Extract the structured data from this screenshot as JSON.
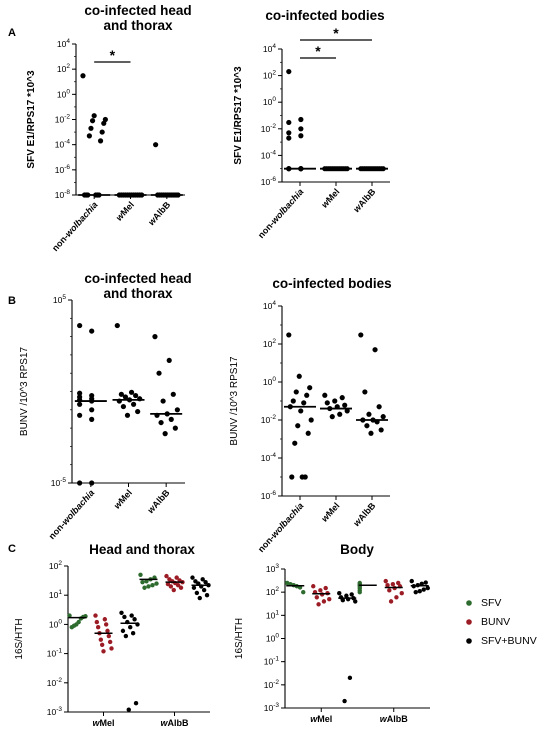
{
  "panels": [
    {
      "label": "A"
    },
    {
      "label": "B"
    },
    {
      "label": "C"
    }
  ],
  "colors": {
    "SFV": "#2e6b2e",
    "BUNV": "#9c1c26",
    "SFV+BUNV": "#000000"
  },
  "legend": {
    "items": [
      {
        "name": "SFV",
        "color": "#2e6b2e"
      },
      {
        "name": "BUNV",
        "color": "#9c1c26"
      },
      {
        "name": "SFV+BUNV",
        "color": "#000000"
      }
    ]
  },
  "chart_data": [
    {
      "type": "scatter",
      "panel": "A",
      "title_lines": [
        "co-infected head",
        "and thorax"
      ],
      "ylabel": "SFV E1/RPS17 *10^3",
      "yscale": "log",
      "ylim": [
        1e-08,
        10000.0
      ],
      "yticks": [
        {
          "v": 10000.0,
          "label": "10^4"
        },
        {
          "v": 100.0,
          "label": "10^2"
        },
        {
          "v": 1,
          "label": "10^0"
        },
        {
          "v": 0.01,
          "label": "10^-2"
        },
        {
          "v": 0.0001,
          "label": "10^-4"
        },
        {
          "v": 1e-06,
          "label": "10^-6"
        },
        {
          "v": 1e-08,
          "label": "10^-8"
        }
      ],
      "categories": [
        "non-wolbachia",
        "wMel",
        "wAlbB"
      ],
      "series": [
        {
          "values": [
            [
              30,
              0.02,
              0.01,
              0.008,
              0.005,
              0.002,
              0.001,
              0.0005,
              0.0002,
              1e-08,
              1e-08,
              1e-08,
              1e-08,
              1e-08,
              1e-08
            ],
            [
              1e-08,
              1e-08,
              1e-08,
              1e-08,
              1e-08,
              1e-08,
              1e-08,
              1e-08,
              1e-08,
              1e-08,
              1e-08,
              1e-08
            ],
            [
              0.0001,
              1e-08,
              1e-08,
              1e-08,
              1e-08,
              1e-08,
              1e-08,
              1e-08,
              1e-08,
              1e-08,
              1e-08,
              1e-08
            ]
          ]
        }
      ],
      "medians": [
        1e-08,
        1e-08,
        1e-08
      ],
      "significance": [
        {
          "from": 0,
          "to": 1,
          "label": "*"
        }
      ]
    },
    {
      "type": "scatter",
      "panel": "A",
      "title_lines": [
        "co-infected bodies"
      ],
      "ylabel": "SFV E1/RPS17 *10^3",
      "yscale": "log",
      "ylim": [
        1e-06,
        10000.0
      ],
      "yticks": [
        {
          "v": 10000.0,
          "label": "10^4"
        },
        {
          "v": 100.0,
          "label": "10^2"
        },
        {
          "v": 1,
          "label": "10^0"
        },
        {
          "v": 0.01,
          "label": "10^-2"
        },
        {
          "v": 0.0001,
          "label": "10^-4"
        },
        {
          "v": 1e-06,
          "label": "10^-6"
        }
      ],
      "categories": [
        "non-wolbachia",
        "wMel",
        "wAlbB"
      ],
      "series": [
        {
          "values": [
            [
              200,
              0.05,
              0.03,
              0.01,
              0.005,
              0.003,
              0.002,
              1e-05,
              1e-05,
              1e-05,
              1e-05,
              1e-05,
              1e-05,
              1e-05
            ],
            [
              1e-05,
              1e-05,
              1e-05,
              1e-05,
              1e-05,
              1e-05,
              1e-05,
              1e-05,
              1e-05,
              1e-05,
              1e-05,
              1e-05
            ],
            [
              1e-05,
              1e-05,
              1e-05,
              1e-05,
              1e-05,
              1e-05,
              1e-05,
              1e-05,
              1e-05,
              1e-05,
              1e-05,
              1e-05
            ]
          ]
        }
      ],
      "medians": [
        1e-05,
        1e-05,
        1e-05
      ],
      "significance": [
        {
          "from": 0,
          "to": 1,
          "label": "*"
        },
        {
          "from": 0,
          "to": 2,
          "label": "*"
        }
      ]
    },
    {
      "type": "scatter",
      "panel": "B",
      "title_lines": [
        "co-infected head",
        "and thorax"
      ],
      "ylabel": "BUNV /10^3 RPS17",
      "yscale": "log",
      "ylim": [
        1e-05,
        100000.0
      ],
      "yticks": [
        {
          "v": 100000.0,
          "label": "10^5"
        },
        {
          "v": 1e-05,
          "label": "10^-5"
        }
      ],
      "categories": [
        "non-wolbachia",
        "wMel",
        "wAlbB"
      ],
      "series": [
        {
          "values": [
            [
              4000,
              2000,
              0.8,
              0.6,
              0.5,
              0.4,
              0.35,
              0.3,
              0.2,
              0.1,
              0.05,
              0.03,
              1e-05,
              1e-05
            ],
            [
              4000,
              0.9,
              0.7,
              0.6,
              0.5,
              0.4,
              0.35,
              0.3,
              0.2,
              0.15,
              0.08,
              0.05
            ],
            [
              1000,
              50,
              10,
              0.7,
              0.3,
              0.1,
              0.06,
              0.05,
              0.03,
              0.02,
              0.01,
              0.005
            ]
          ]
        }
      ],
      "medians": [
        0.3,
        0.35,
        0.06
      ],
      "significance": []
    },
    {
      "type": "scatter",
      "panel": "B",
      "title_lines": [
        "co-infected bodies"
      ],
      "ylabel": "BUNV /10^3 RPS17",
      "yscale": "log",
      "ylim": [
        1e-06,
        10000.0
      ],
      "yticks": [
        {
          "v": 10000.0,
          "label": "10^4"
        },
        {
          "v": 100.0,
          "label": "10^2"
        },
        {
          "v": 1,
          "label": "10^0"
        },
        {
          "v": 0.01,
          "label": "10^-2"
        },
        {
          "v": 0.0001,
          "label": "10^-4"
        },
        {
          "v": 1e-06,
          "label": "10^-6"
        }
      ],
      "categories": [
        "non-wolbachia",
        "wMel",
        "wAlbB"
      ],
      "series": [
        {
          "values": [
            [
              300,
              2,
              0.5,
              0.3,
              0.2,
              0.1,
              0.08,
              0.05,
              0.03,
              0.01,
              0.005,
              0.002,
              0.0006,
              1e-05,
              1e-05,
              1e-05
            ],
            [
              0.2,
              0.15,
              0.1,
              0.08,
              0.06,
              0.05,
              0.04,
              0.03,
              0.02,
              0.015
            ],
            [
              300,
              50,
              0.3,
              0.05,
              0.02,
              0.015,
              0.01,
              0.01,
              0.008,
              0.005,
              0.003,
              0.002
            ]
          ]
        }
      ],
      "medians": [
        0.05,
        0.04,
        0.01
      ],
      "significance": []
    },
    {
      "type": "scatter",
      "panel": "C",
      "title_lines": [
        "Head and thorax"
      ],
      "ylabel": "16S/HTH",
      "yscale": "log",
      "ylim": [
        0.001,
        100
      ],
      "yticks": [
        {
          "v": 100,
          "label": "10^2"
        },
        {
          "v": 10,
          "label": "10^1"
        },
        {
          "v": 1,
          "label": "10^0"
        },
        {
          "v": 0.1,
          "label": "10^-1"
        },
        {
          "v": 0.01,
          "label": "10^-2"
        },
        {
          "v": 0.001,
          "label": "10^-3"
        }
      ],
      "categories": [
        "wMel",
        "wAlbB"
      ],
      "series": [
        {
          "name": "SFV",
          "values": [
            [
              2,
              1.9,
              1.8,
              1.6,
              1.2,
              1.0,
              0.9,
              0.8
            ],
            [
              50,
              40,
              35,
              30,
              28,
              25,
              22,
              20,
              18
            ]
          ]
        },
        {
          "name": "BUNV",
          "values": [
            [
              2,
              1.5,
              1.2,
              1,
              0.8,
              0.6,
              0.5,
              0.4,
              0.3,
              0.25,
              0.2,
              0.15,
              0.12
            ],
            [
              45,
              40,
              35,
              32,
              30,
              28,
              26,
              24,
              22,
              20,
              18,
              15
            ]
          ]
        },
        {
          "name": "SFV+BUNV",
          "values": [
            [
              2.5,
              2,
              1.8,
              1.5,
              1.2,
              1,
              0.8,
              0.6,
              0.5,
              0.4,
              0.002,
              0.0012
            ],
            [
              40,
              35,
              30,
              28,
              25,
              22,
              20,
              18,
              15,
              12,
              10,
              8
            ]
          ]
        }
      ],
      "medians": [
        [
          1.7,
          35
        ],
        [
          0.5,
          28
        ],
        [
          1.1,
          22
        ]
      ],
      "significance": []
    },
    {
      "type": "scatter",
      "panel": "C",
      "title_lines": [
        "Body"
      ],
      "ylabel": "16S/HTH",
      "yscale": "log",
      "ylim": [
        0.001,
        1000
      ],
      "yticks": [
        {
          "v": 1000,
          "label": "10^3"
        },
        {
          "v": 100,
          "label": "10^2"
        },
        {
          "v": 10,
          "label": "10^1"
        },
        {
          "v": 1,
          "label": "10^0"
        },
        {
          "v": 0.1,
          "label": "10^-1"
        },
        {
          "v": 0.01,
          "label": "10^-2"
        },
        {
          "v": 0.001,
          "label": "10^-3"
        }
      ],
      "categories": [
        "wMel",
        "wAlbB"
      ],
      "series": [
        {
          "name": "SFV",
          "values": [
            [
              250,
              220,
              200,
              180,
              160,
              100
            ],
            [
              250,
              220,
              200,
              180,
              150,
              120,
              100
            ]
          ]
        },
        {
          "name": "BUNV",
          "values": [
            [
              180,
              150,
              120,
              100,
              90,
              80,
              60,
              50,
              40,
              30
            ],
            [
              300,
              250,
              220,
              200,
              180,
              150,
              120,
              90,
              60,
              40
            ]
          ]
        },
        {
          "name": "SFV+BUNV",
          "values": [
            [
              90,
              80,
              70,
              60,
              55,
              50,
              45,
              40,
              0.02,
              0.002
            ],
            [
              300,
              260,
              230,
              200,
              180,
              150,
              130,
              110,
              100
            ]
          ]
        }
      ],
      "medians": [
        [
          190,
          200
        ],
        [
          85,
          160
        ],
        [
          55,
          190
        ]
      ],
      "significance": []
    }
  ]
}
